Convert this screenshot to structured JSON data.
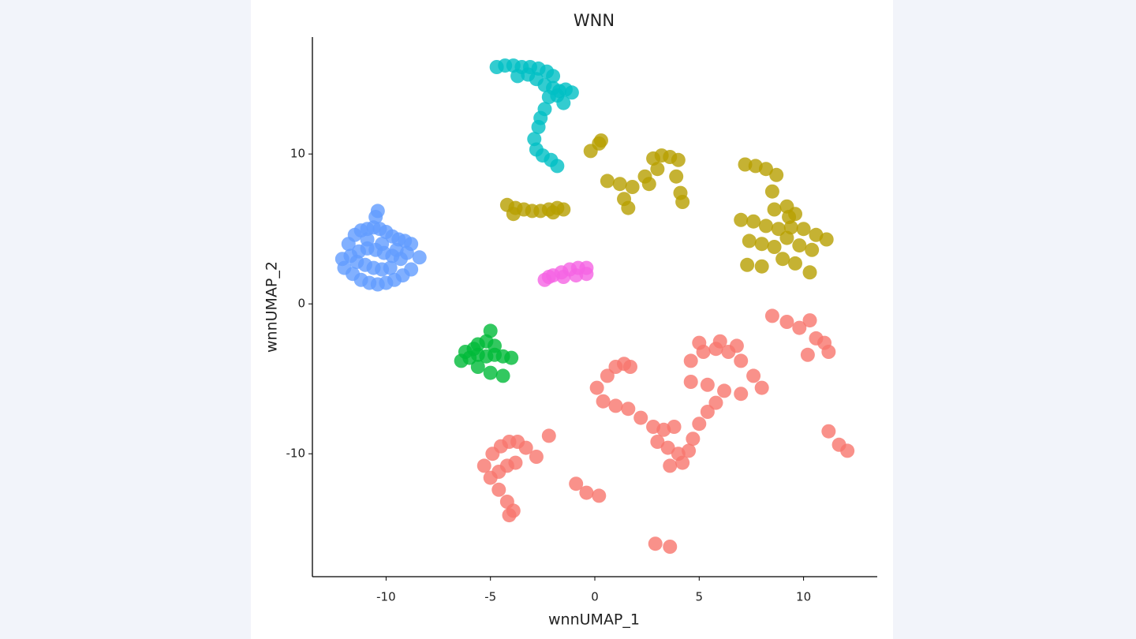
{
  "chart_data": {
    "type": "scatter",
    "title": "WNN",
    "x_label": "wnnUMAP_1",
    "y_label": "wnnUMAP_2",
    "xlim": [
      -13.53,
      13.53
    ],
    "ylim": [
      -18.2,
      17.8
    ],
    "xticks": [
      -10,
      -5,
      0,
      5,
      10
    ],
    "yticks": [
      -10,
      0,
      10
    ],
    "grid": false,
    "series": [
      {
        "color": "#f8766d",
        "x": [
          0.1,
          0.6,
          1.0,
          1.4,
          1.7,
          0.4,
          1.0,
          1.6,
          2.2,
          2.8,
          3.3,
          3.8,
          3.0,
          3.5,
          4.0,
          4.5,
          3.6,
          4.2,
          4.7,
          5.0,
          5.4,
          5.8,
          4.6,
          5.2,
          5.8,
          6.4,
          7.0,
          7.6,
          8.0,
          4.6,
          5.4,
          6.2,
          7.0,
          5.0,
          6.0,
          6.8,
          -5.3,
          -4.9,
          -4.5,
          -4.1,
          -3.7,
          -3.3,
          -5.0,
          -4.6,
          -4.2,
          -3.8,
          -4.6,
          -4.2,
          -3.9,
          -2.8,
          -2.2,
          -4.1,
          -0.9,
          -0.4,
          0.2,
          2.9,
          3.6,
          11.2,
          11.7,
          12.1,
          8.5,
          9.2,
          9.8,
          10.3,
          10.6,
          11.0,
          11.2,
          10.2
        ],
        "values": [
          -5.6,
          -4.8,
          -4.2,
          -4.0,
          -4.2,
          -6.5,
          -6.8,
          -7.0,
          -7.6,
          -8.2,
          -8.4,
          -8.2,
          -9.2,
          -9.6,
          -10.0,
          -9.8,
          -10.8,
          -10.6,
          -9.0,
          -8.0,
          -7.2,
          -6.6,
          -3.8,
          -3.2,
          -3.0,
          -3.2,
          -3.8,
          -4.8,
          -5.6,
          -5.2,
          -5.4,
          -5.8,
          -6.0,
          -2.6,
          -2.5,
          -2.8,
          -10.8,
          -10.0,
          -9.5,
          -9.2,
          -9.2,
          -9.6,
          -11.6,
          -11.2,
          -10.8,
          -10.6,
          -12.4,
          -13.2,
          -13.8,
          -10.2,
          -8.8,
          -14.1,
          -12.0,
          -12.6,
          -12.8,
          -16.0,
          -16.2,
          -8.5,
          -9.4,
          -9.8,
          -0.8,
          -1.2,
          -1.6,
          -1.1,
          -2.3,
          -2.6,
          -3.2,
          -3.4
        ]
      },
      {
        "color": "#b79f00",
        "x": [
          -4.2,
          -3.8,
          -3.4,
          -3.0,
          -2.6,
          -2.2,
          -1.8,
          -1.5,
          -3.9,
          -2.0,
          -0.2,
          0.2,
          0.3,
          0.6,
          1.2,
          1.8,
          2.4,
          1.4,
          1.6,
          2.8,
          3.2,
          3.6,
          4.0,
          3.9,
          4.1,
          4.2,
          3.0,
          2.6,
          7.2,
          7.7,
          8.2,
          8.7,
          8.5,
          9.2,
          9.6,
          7.0,
          7.6,
          8.2,
          8.8,
          9.4,
          10.0,
          10.6,
          11.1,
          7.4,
          8.0,
          8.6,
          9.2,
          9.8,
          10.4,
          7.3,
          8.0,
          9.0,
          9.6,
          10.3,
          8.6,
          9.3
        ],
        "values": [
          6.6,
          6.4,
          6.3,
          6.2,
          6.2,
          6.3,
          6.4,
          6.3,
          6.0,
          6.1,
          10.2,
          10.7,
          10.9,
          8.2,
          8.0,
          7.8,
          8.5,
          7.0,
          6.4,
          9.7,
          9.9,
          9.8,
          9.6,
          8.5,
          7.4,
          6.8,
          9.0,
          8.0,
          9.3,
          9.2,
          9.0,
          8.6,
          7.5,
          6.5,
          6.0,
          5.6,
          5.5,
          5.2,
          5.0,
          5.1,
          5.0,
          4.6,
          4.3,
          4.2,
          4.0,
          3.8,
          4.4,
          3.9,
          3.6,
          2.6,
          2.5,
          3.0,
          2.7,
          2.1,
          6.3,
          5.8
        ]
      },
      {
        "color": "#00ba38",
        "x": [
          -6.4,
          -6.0,
          -5.6,
          -5.2,
          -4.8,
          -4.4,
          -4.0,
          -6.2,
          -5.6,
          -5.0,
          -4.4,
          -5.2,
          -5.0,
          -4.8,
          -5.6,
          -5.8
        ],
        "values": [
          -3.8,
          -3.6,
          -3.4,
          -3.5,
          -3.4,
          -3.5,
          -3.6,
          -3.2,
          -4.2,
          -4.6,
          -4.8,
          -2.5,
          -1.8,
          -2.8,
          -2.7,
          -3.0
        ]
      },
      {
        "color": "#00bfc4",
        "x": [
          -4.7,
          -4.3,
          -3.9,
          -3.5,
          -3.1,
          -2.7,
          -2.3,
          -2.0,
          -3.7,
          -3.2,
          -2.8,
          -2.4,
          -2.0,
          -1.7,
          -1.4,
          -1.1,
          -2.2,
          -1.8,
          -1.5,
          -2.4,
          -2.6,
          -2.7,
          -2.9,
          -2.8,
          -2.5,
          -2.1,
          -1.8
        ],
        "values": [
          15.8,
          15.9,
          15.9,
          15.8,
          15.8,
          15.7,
          15.5,
          15.2,
          15.2,
          15.3,
          15.0,
          14.6,
          14.4,
          14.2,
          14.3,
          14.1,
          13.8,
          13.9,
          13.4,
          13.0,
          12.4,
          11.8,
          11.0,
          10.3,
          9.9,
          9.6,
          9.2
        ]
      },
      {
        "color": "#619cff",
        "x": [
          -12.1,
          -11.8,
          -11.5,
          -11.2,
          -10.9,
          -10.6,
          -10.3,
          -10.0,
          -9.7,
          -9.4,
          -9.1,
          -8.8,
          -8.4,
          -12.0,
          -11.6,
          -11.2,
          -10.8,
          -10.4,
          -10.0,
          -9.6,
          -9.2,
          -8.8,
          -11.7,
          -11.3,
          -10.9,
          -10.5,
          -10.1,
          -9.7,
          -9.3,
          -11.0,
          -10.6,
          -10.2,
          -9.8,
          -10.5,
          -10.4,
          -11.4,
          -10.9,
          -10.2,
          -9.5,
          -9.0
        ],
        "values": [
          3.0,
          4.0,
          4.6,
          4.9,
          5.0,
          5.1,
          5.0,
          4.8,
          4.5,
          4.3,
          4.2,
          4.0,
          3.1,
          2.4,
          2.0,
          1.6,
          1.4,
          1.3,
          1.4,
          1.6,
          1.9,
          2.3,
          3.2,
          3.5,
          3.7,
          3.6,
          3.4,
          3.2,
          3.0,
          2.6,
          2.4,
          2.3,
          2.4,
          5.8,
          6.2,
          2.8,
          4.3,
          4.0,
          3.6,
          3.4
        ]
      },
      {
        "color": "#f564e3",
        "x": [
          -2.4,
          -2.0,
          -1.6,
          -1.2,
          -0.8,
          -0.4,
          -2.2,
          -1.5,
          -0.9,
          -0.4
        ],
        "values": [
          1.6,
          1.9,
          2.1,
          2.3,
          2.4,
          2.4,
          1.8,
          1.8,
          1.9,
          2.0
        ]
      }
    ]
  }
}
